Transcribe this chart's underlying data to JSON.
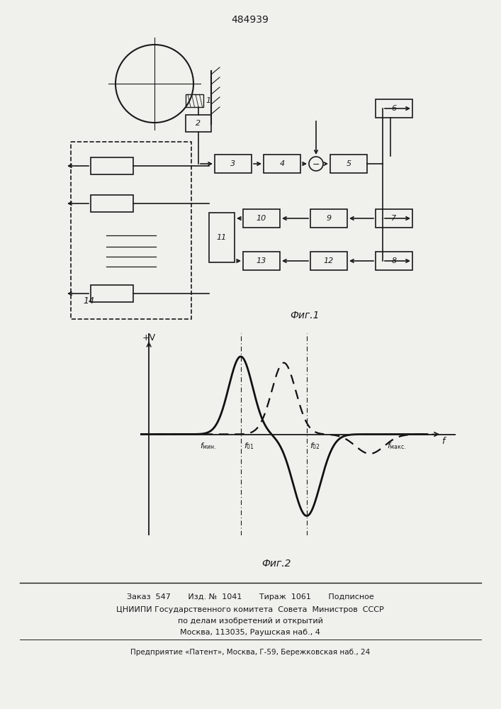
{
  "title": "484939",
  "fig1_label": "Фиг.1",
  "fig2_label": "Фиг.2",
  "bg_color": "#f0f0ec",
  "line_color": "#1a1a1a",
  "footer_line1": "Заказ  547       Изд. №  1041       Тираж  1061       Подписное",
  "footer_line2": "ЦНИИПИ Государственного комитета  Совета  Министров  СССР",
  "footer_line3": "по делам изобретений и открытий",
  "footer_line4": "Москва, 113035, Раушская наб., 4",
  "footer_line5": "Предприятие «Патент», Москва, Г-59, Бережковская наб., 24"
}
